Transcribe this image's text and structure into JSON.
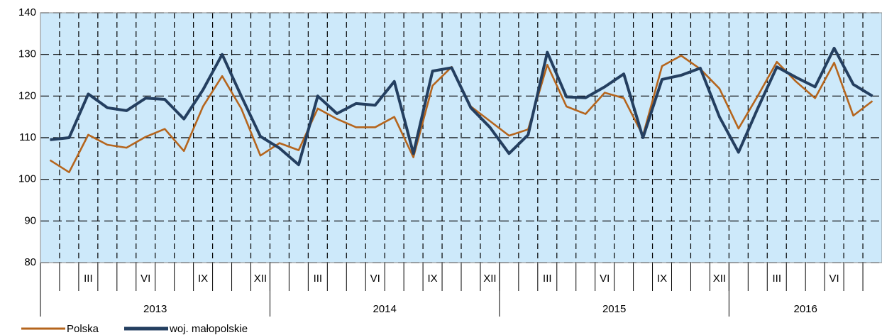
{
  "chart_data": {
    "type": "line",
    "categories": [
      null,
      null,
      "III",
      null,
      null,
      "VI",
      null,
      null,
      "IX",
      null,
      null,
      "XII",
      null,
      null,
      "III",
      null,
      null,
      "VI",
      null,
      null,
      "IX",
      null,
      null,
      "XII",
      null,
      null,
      "III",
      null,
      null,
      "VI",
      null,
      null,
      "IX",
      null,
      null,
      "XII",
      null,
      null,
      "III",
      null,
      null,
      "VI",
      null,
      null
    ],
    "years": [
      {
        "label": "2013",
        "months": 12
      },
      {
        "label": "2014",
        "months": 12
      },
      {
        "label": "2015",
        "months": 12
      },
      {
        "label": "2016",
        "months": 8
      }
    ],
    "series": [
      {
        "name": "Polska",
        "color": "#b5651d",
        "values": [
          104.6,
          101.7,
          110.7,
          108.3,
          107.6,
          110.2,
          112.1,
          106.8,
          117.5,
          124.8,
          117,
          105.7,
          108.7,
          107,
          117,
          114.5,
          112.5,
          112.5,
          115,
          105.3,
          122.5,
          127,
          117.5,
          114,
          110.5,
          112,
          127.5,
          117.5,
          115.7,
          120.8,
          119.5,
          110.5,
          127.2,
          129.7,
          126.5,
          121.8,
          112.2,
          120,
          128.2,
          123.5,
          119.5,
          128,
          115.3,
          118.8
        ]
      },
      {
        "name": "woj. małopolskie",
        "color": "#243f60",
        "values": [
          109.5,
          110,
          120.5,
          117.2,
          116.5,
          119.5,
          119.2,
          114.5,
          121.5,
          130,
          120,
          110.3,
          107.5,
          103.5,
          120,
          115.8,
          118.2,
          117.8,
          123.5,
          106.2,
          126,
          126.8,
          117.2,
          112.5,
          106.2,
          110.7,
          130.5,
          119.8,
          119.6,
          122.2,
          125.3,
          110,
          124,
          125,
          126.7,
          115,
          106.5,
          117,
          127,
          124.5,
          122.2,
          131.5,
          122.8,
          120
        ]
      }
    ],
    "ylim": [
      80,
      140
    ],
    "yticks": [
      80,
      90,
      100,
      110,
      120,
      130,
      140
    ],
    "grid": true
  }
}
